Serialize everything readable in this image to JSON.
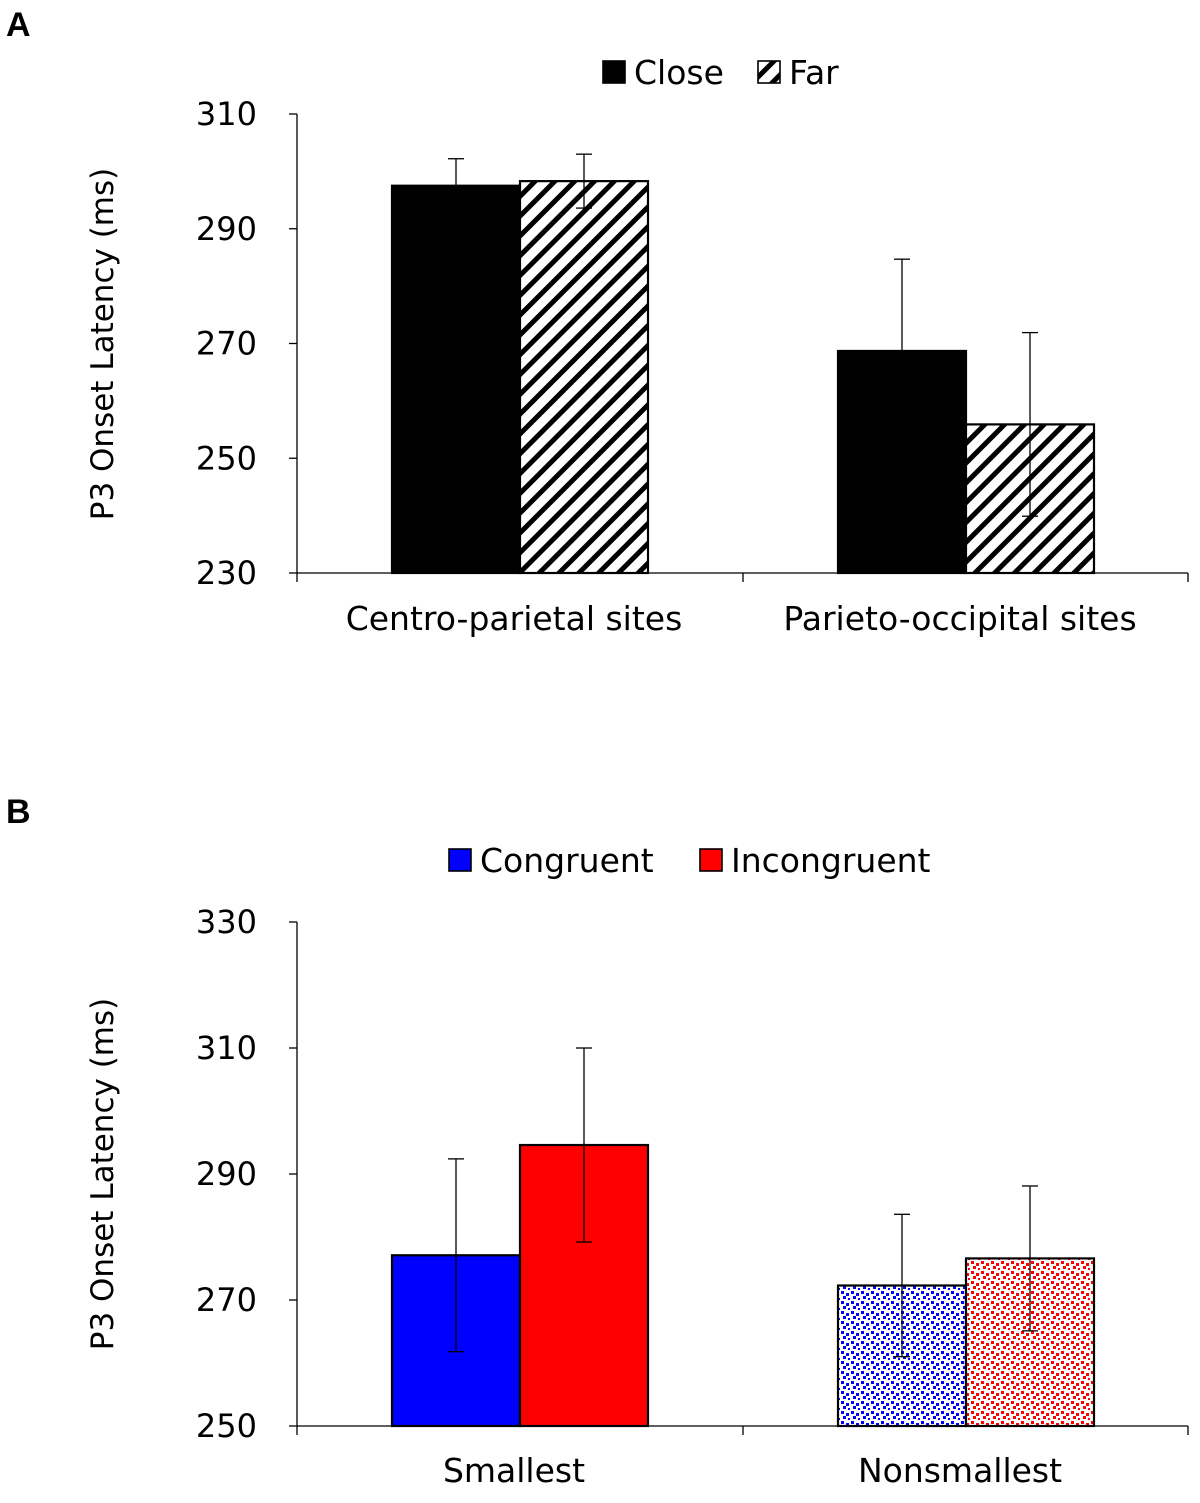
{
  "chart_data": [
    {
      "panel": "A",
      "type": "bar",
      "title": "",
      "xlabel": "",
      "ylabel": "P3 Onset Latency (ms)",
      "ylim": [
        230,
        310
      ],
      "yticks": [
        230,
        250,
        270,
        290,
        310
      ],
      "grid": false,
      "legend_position": "top-center",
      "categories": [
        "Centro-parietal sites",
        "Parieto-occipital sites"
      ],
      "series": [
        {
          "name": "Close",
          "values": [
            297.5,
            268.7
          ],
          "errors": [
            4.7,
            16.0
          ],
          "fill": "solid",
          "color": "#000000"
        },
        {
          "name": "Far",
          "values": [
            298.3,
            255.9
          ],
          "errors": [
            4.7,
            16.0
          ],
          "fill": "hatch",
          "color": "#000000"
        }
      ]
    },
    {
      "panel": "B",
      "type": "bar",
      "title": "",
      "xlabel": "",
      "ylabel": "P3 Onset Latency (ms)",
      "ylim": [
        250,
        330
      ],
      "yticks": [
        250,
        270,
        290,
        310,
        330
      ],
      "grid": false,
      "legend_position": "top-center",
      "categories": [
        "Smallest",
        "Nonsmallest"
      ],
      "series": [
        {
          "name": "Congruent",
          "values": [
            277.1,
            272.3
          ],
          "errors": [
            15.3,
            11.3
          ],
          "fill": [
            "solid",
            "dotted"
          ],
          "color": "#0000ff"
        },
        {
          "name": "Incongruent",
          "values": [
            294.6,
            276.6
          ],
          "errors": [
            15.4,
            11.5
          ],
          "fill": [
            "solid",
            "dotted"
          ],
          "color": "#ff0000"
        }
      ]
    }
  ]
}
